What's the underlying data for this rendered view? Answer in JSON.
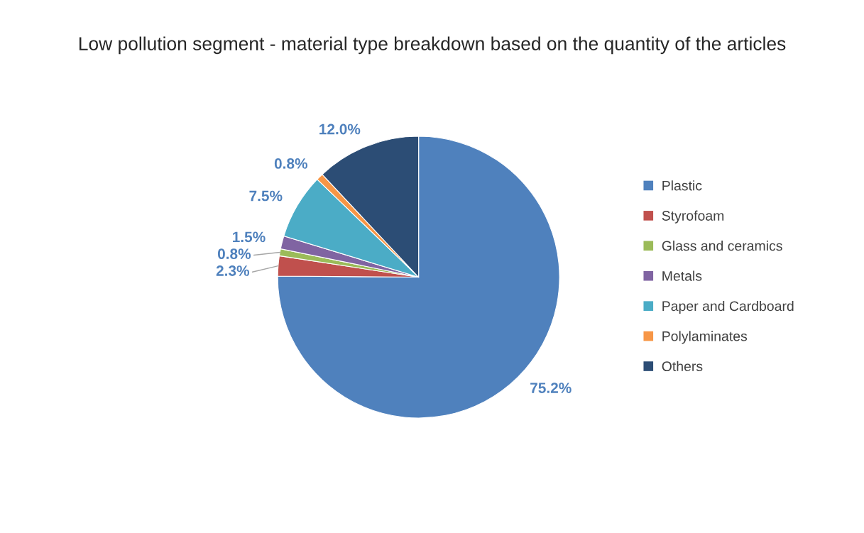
{
  "chart_data": {
    "type": "pie",
    "title": "Low pollution segment - material type breakdown based on the quantity of the articles",
    "categories": [
      "Plastic",
      "Styrofoam",
      "Glass and ceramics",
      "Metals",
      "Paper and Cardboard",
      "Polylaminates",
      "Others"
    ],
    "values": [
      75.2,
      2.3,
      0.8,
      1.5,
      7.5,
      0.8,
      12.0
    ],
    "value_labels": [
      "75.2%",
      "2.3%",
      "0.8%",
      "1.5%",
      "7.5%",
      "0.8%",
      "12.0%"
    ],
    "colors": [
      "#4f81bd",
      "#c0504d",
      "#9bbb59",
      "#8064a2",
      "#4bacc6",
      "#f79646",
      "#2c4d75"
    ],
    "legend": "right"
  }
}
